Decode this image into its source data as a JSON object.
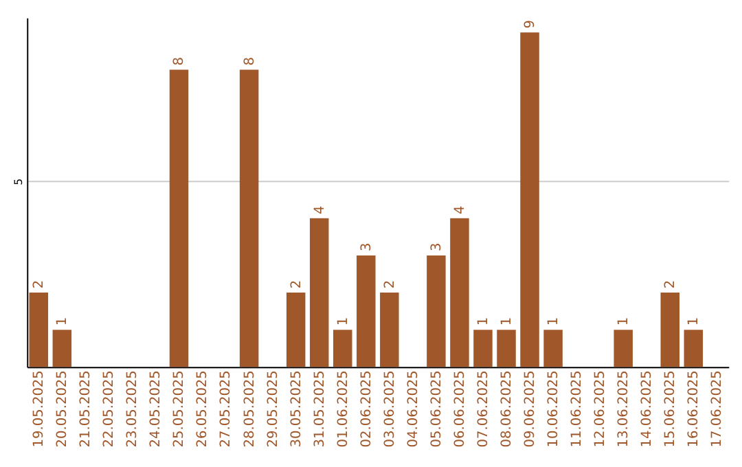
{
  "chart_data": {
    "type": "bar",
    "categories": [
      "19.05.2025",
      "20.05.2025",
      "21.05.2025",
      "22.05.2025",
      "23.05.2025",
      "24.05.2025",
      "25.05.2025",
      "26.05.2025",
      "27.05.2025",
      "28.05.2025",
      "29.05.2025",
      "30.05.2025",
      "31.05.2025",
      "01.06.2025",
      "02.06.2025",
      "03.06.2025",
      "04.06.2025",
      "05.06.2025",
      "06.06.2025",
      "07.06.2025",
      "08.06.2025",
      "09.06.2025",
      "10.06.2025",
      "11.06.2025",
      "12.06.2025",
      "13.06.2025",
      "14.06.2025",
      "15.06.2025",
      "16.06.2025",
      "17.06.2025"
    ],
    "values": [
      2,
      1,
      0,
      0,
      0,
      0,
      8,
      0,
      0,
      8,
      0,
      2,
      4,
      1,
      3,
      2,
      0,
      3,
      4,
      1,
      1,
      9,
      1,
      0,
      0,
      1,
      0,
      2,
      1,
      0
    ],
    "value_labels": [
      "2",
      "1",
      null,
      null,
      null,
      null,
      "8",
      null,
      null,
      "8",
      null,
      "2",
      "4",
      "1",
      "3",
      "2",
      null,
      "3",
      "4",
      "1",
      "1",
      "9",
      "1",
      null,
      null,
      "1",
      null,
      "2",
      "1",
      null
    ],
    "color": "#a0572a",
    "ylim": [
      0,
      9.4
    ],
    "yticks": [
      5
    ],
    "grid": "y"
  }
}
